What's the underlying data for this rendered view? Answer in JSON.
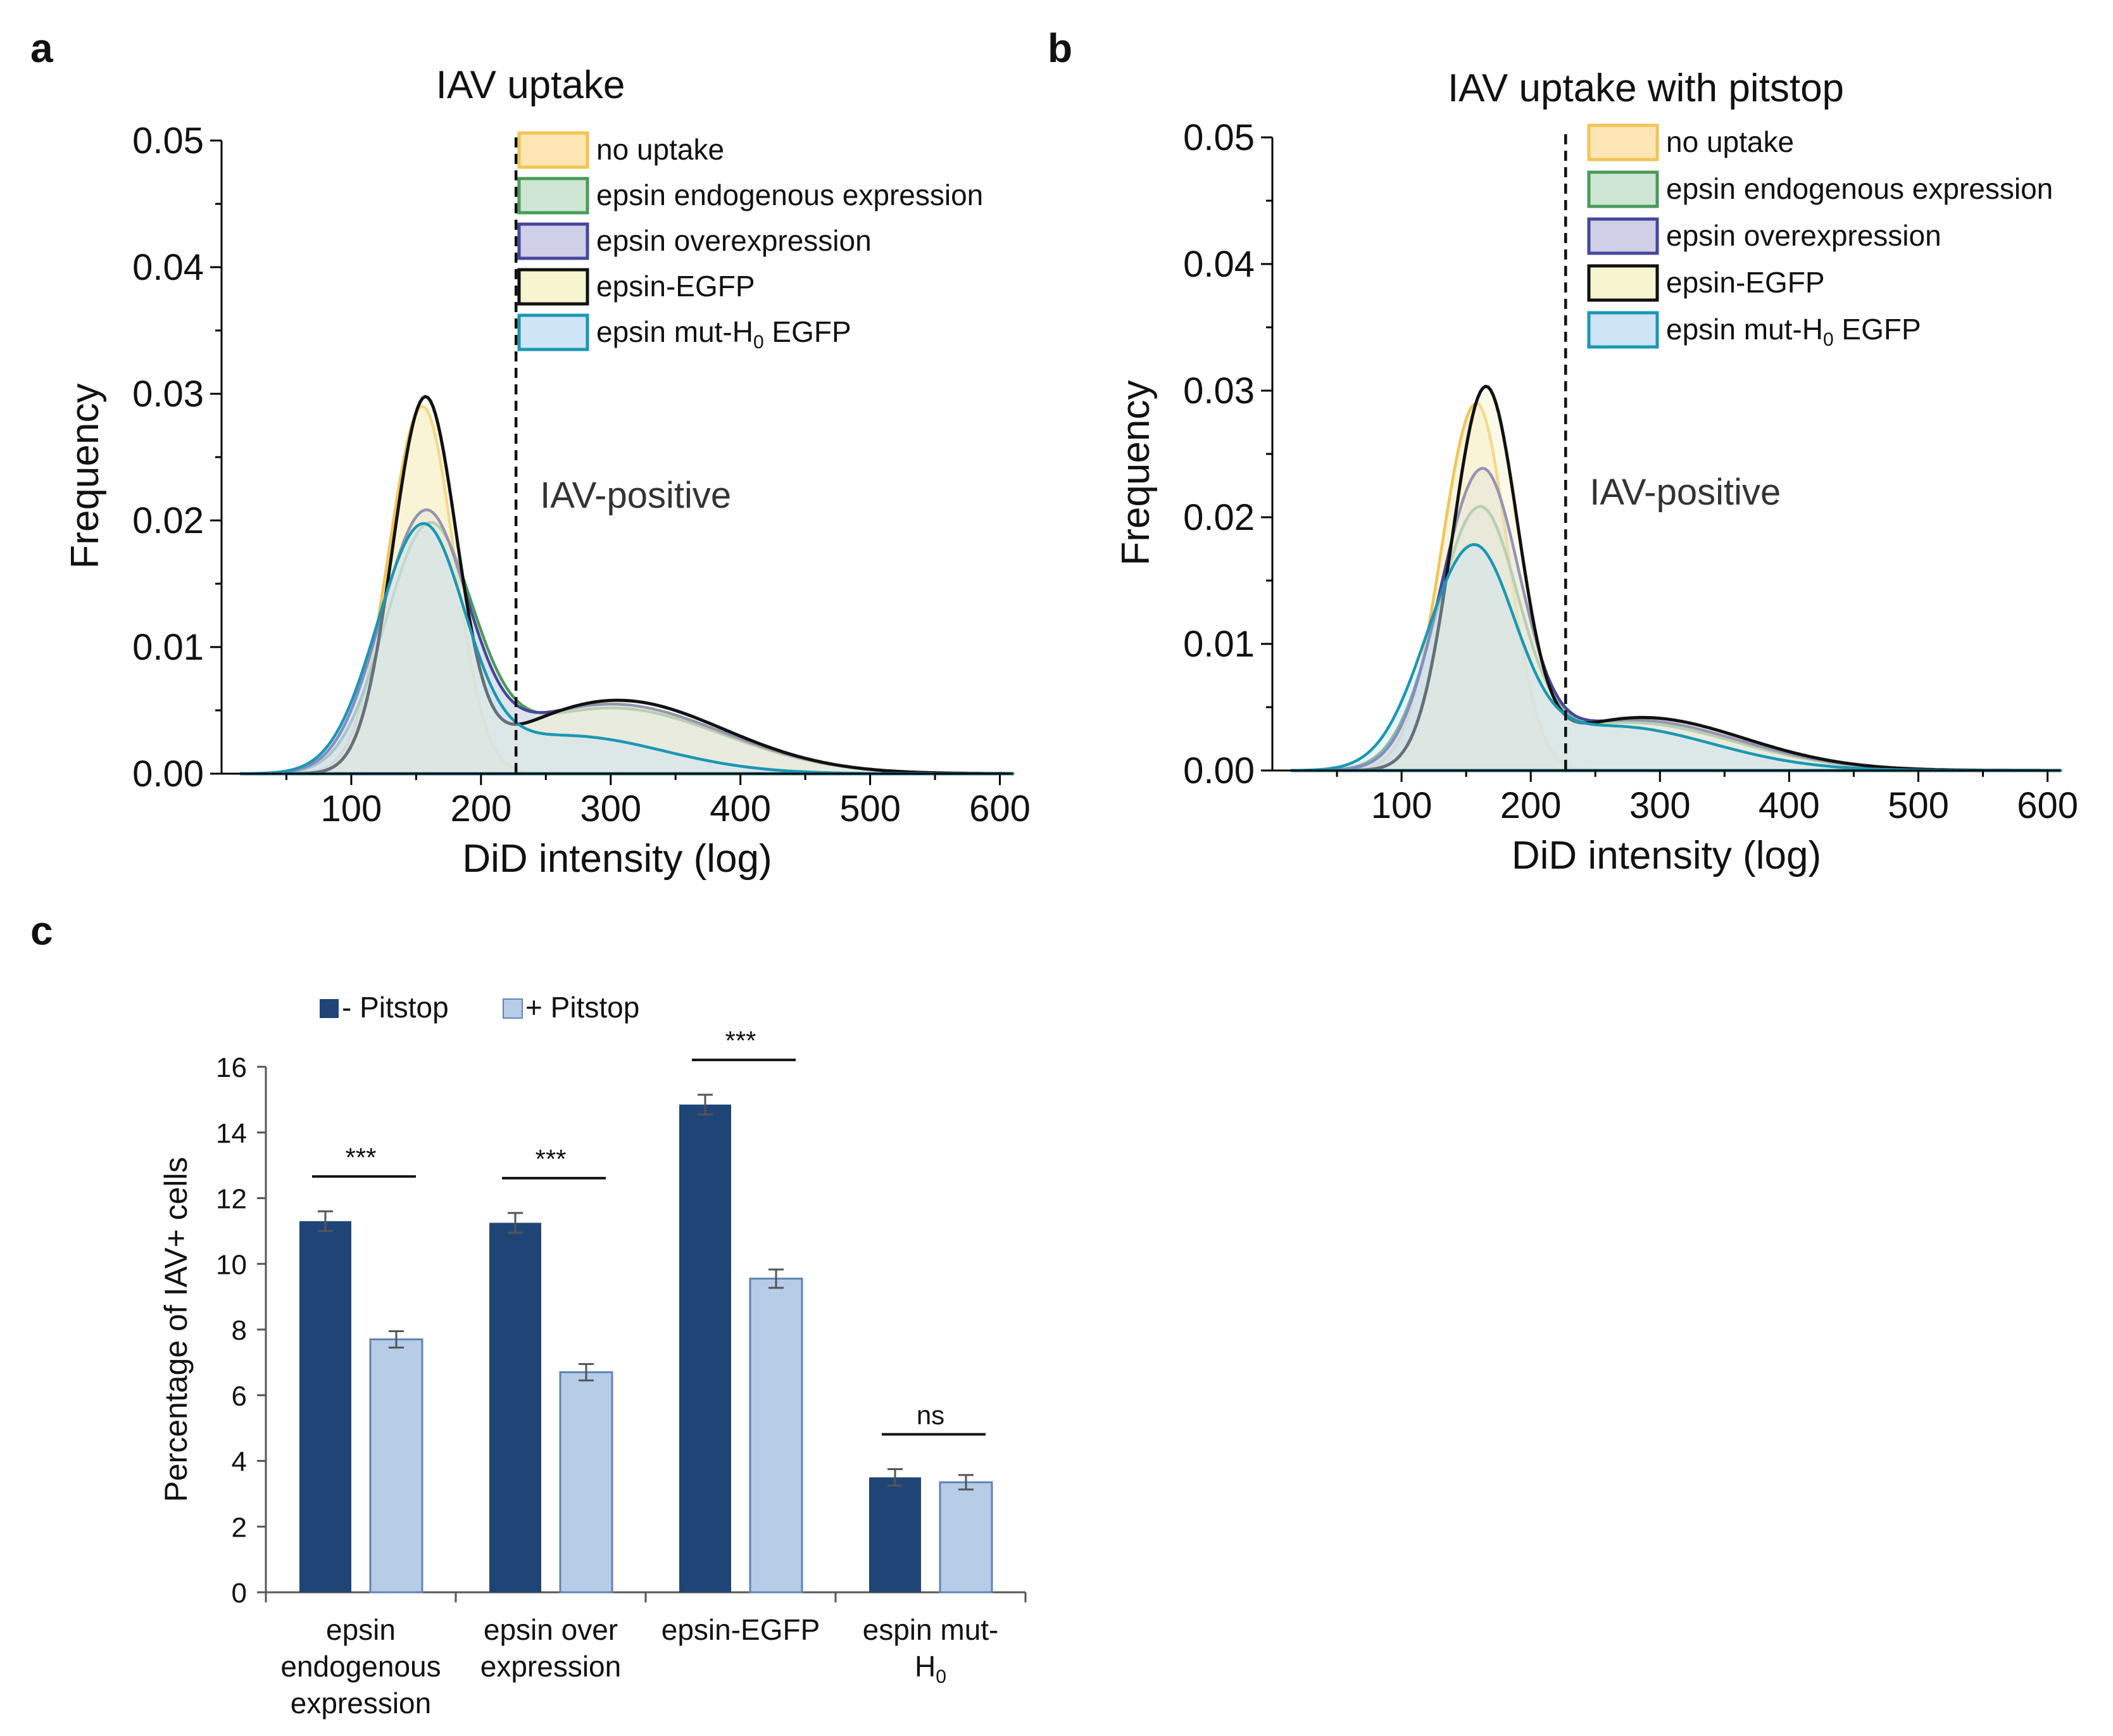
{
  "colors": {
    "no_uptake": {
      "stroke": "#f2c454",
      "fill": "#fde6b4"
    },
    "endogenous": {
      "stroke": "#4a9a5a",
      "fill": "#cfe6d4"
    },
    "overexpression": {
      "stroke": "#45469c",
      "fill": "#cfcfe8"
    },
    "egfp": {
      "stroke": "#111111",
      "fill": "#f6f5cf"
    },
    "mut": {
      "stroke": "#1a97b4",
      "fill": "#cfe4f4"
    },
    "bar_minus": "#1f4577",
    "bar_plus": "#b7cce6",
    "bar_plus_edge": "#5f83b8"
  },
  "chart_data": [
    {
      "type": "area",
      "panel_label": "a",
      "title": "IAV uptake",
      "xlabel": "DiD intensity (log)",
      "ylabel": "Frequency",
      "xlim": [
        0,
        610
      ],
      "ylim": [
        0,
        0.05
      ],
      "x_ticks": [
        "100",
        "200",
        "300",
        "400",
        "500",
        "600"
      ],
      "y_ticks": [
        "0.00",
        "0.01",
        "0.02",
        "0.03",
        "0.04",
        "0.05"
      ],
      "threshold_x": 227,
      "annotation": "IAV-positive",
      "series": [
        {
          "key": "no_uptake",
          "name": "no uptake",
          "peak_x": 155,
          "peak_y": 0.029,
          "sigma_left": 26,
          "sigma_right": 24,
          "tail_amp": 0,
          "tail_center": 300,
          "tail_sigma": 80
        },
        {
          "key": "endogenous",
          "name": "epsin endogenous expression",
          "peak_x": 160,
          "peak_y": 0.0195,
          "sigma_left": 34,
          "sigma_right": 33,
          "tail_amp": 0.0052,
          "tail_center": 300,
          "tail_sigma": 85
        },
        {
          "key": "overexpression",
          "name": "epsin overexpression",
          "peak_x": 157,
          "peak_y": 0.0205,
          "sigma_left": 34,
          "sigma_right": 32,
          "tail_amp": 0.0055,
          "tail_center": 300,
          "tail_sigma": 85
        },
        {
          "key": "egfp",
          "name": "epsin-EGFP",
          "peak_x": 157,
          "peak_y": 0.0295,
          "sigma_left": 25,
          "sigma_right": 24,
          "tail_amp": 0.0058,
          "tail_center": 305,
          "tail_sigma": 82
        },
        {
          "key": "mut",
          "name": "epsin mut-H0 EGFP",
          "peak_x": 155,
          "peak_y": 0.0195,
          "sigma_left": 35,
          "sigma_right": 32,
          "tail_amp": 0.003,
          "tail_center": 265,
          "tail_sigma": 75
        }
      ]
    },
    {
      "type": "area",
      "panel_label": "b",
      "title": "IAV uptake with pitstop",
      "xlabel": "DiD intensity (log)",
      "ylabel": "Frequency",
      "xlim": [
        0,
        610
      ],
      "ylim": [
        0,
        0.05
      ],
      "x_ticks": [
        "100",
        "200",
        "300",
        "400",
        "500",
        "600"
      ],
      "y_ticks": [
        "0.00",
        "0.01",
        "0.02",
        "0.03",
        "0.04",
        "0.05"
      ],
      "threshold_x": 227,
      "annotation": "IAV-positive",
      "series": [
        {
          "key": "no_uptake",
          "name": "no uptake",
          "peak_x": 158,
          "peak_y": 0.029,
          "sigma_left": 27,
          "sigma_right": 24,
          "tail_amp": 0,
          "tail_center": 300,
          "tail_sigma": 80
        },
        {
          "key": "endogenous",
          "name": "epsin endogenous expression",
          "peak_x": 160,
          "peak_y": 0.0205,
          "sigma_left": 33,
          "sigma_right": 30,
          "tail_amp": 0.0038,
          "tail_center": 275,
          "tail_sigma": 82
        },
        {
          "key": "overexpression",
          "name": "epsin overexpression",
          "peak_x": 162,
          "peak_y": 0.0235,
          "sigma_left": 32,
          "sigma_right": 29,
          "tail_amp": 0.004,
          "tail_center": 278,
          "tail_sigma": 82
        },
        {
          "key": "egfp",
          "name": "epsin-EGFP",
          "peak_x": 165,
          "peak_y": 0.03,
          "sigma_left": 26,
          "sigma_right": 25,
          "tail_amp": 0.0042,
          "tail_center": 285,
          "tail_sigma": 80
        },
        {
          "key": "mut",
          "name": "epsin mut-H0 EGFP",
          "peak_x": 155,
          "peak_y": 0.0175,
          "sigma_left": 36,
          "sigma_right": 32,
          "tail_amp": 0.0035,
          "tail_center": 262,
          "tail_sigma": 78
        }
      ]
    },
    {
      "type": "bar",
      "panel_label": "c",
      "title": "",
      "xlabel": "",
      "ylabel": "Percentage of IAV+ cells",
      "ylim": [
        0,
        16
      ],
      "y_ticks": [
        "0",
        "2",
        "4",
        "6",
        "8",
        "10",
        "12",
        "14",
        "16"
      ],
      "categories": [
        [
          "epsin",
          "endogenous",
          "expression"
        ],
        [
          "epsin over",
          "expression"
        ],
        [
          "epsin-EGFP"
        ],
        [
          "espin mut-",
          "H0"
        ]
      ],
      "series": [
        {
          "name": "- Pitstop",
          "values": [
            11.3,
            11.25,
            14.85,
            3.5
          ],
          "errors": [
            0.3,
            0.3,
            0.3,
            0.25
          ]
        },
        {
          "name": "+ Pitstop",
          "values": [
            7.7,
            6.7,
            9.55,
            3.35
          ],
          "errors": [
            0.25,
            0.25,
            0.28,
            0.22
          ]
        }
      ],
      "significance": [
        "***",
        "***",
        "***",
        "ns"
      ]
    }
  ]
}
